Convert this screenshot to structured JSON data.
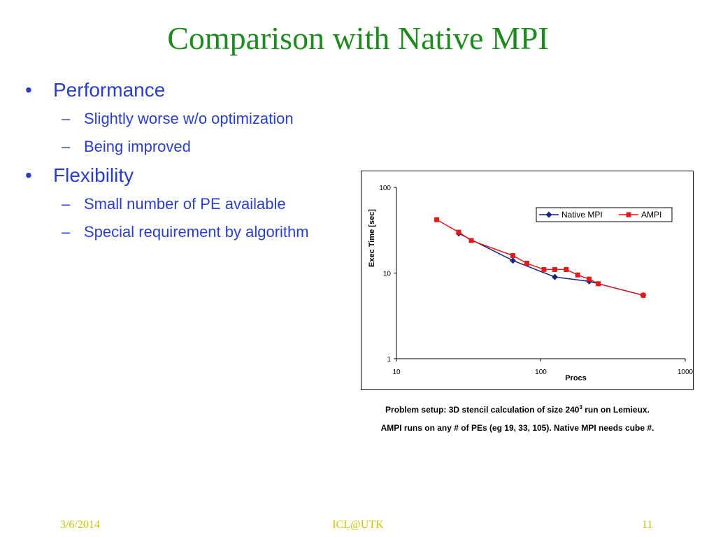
{
  "slide": {
    "title": "Comparison with Native MPI",
    "bullets": [
      {
        "text": "Performance",
        "sub": [
          "Slightly worse w/o optimization",
          "Being improved"
        ]
      },
      {
        "text": "Flexibility",
        "sub": [
          "Small number of PE available",
          "Special requirement by algorithm"
        ]
      }
    ],
    "bullet_glyph": "•",
    "sub_glyph": "–",
    "caption": {
      "line1_pre": "Problem setup: 3D stencil calculation of size 240",
      "line1_sup": "3",
      "line1_post": " run on Lemieux.",
      "line2": "AMPI runs on any # of PEs (eg 19, 33, 105). Native MPI needs cube #."
    },
    "footer": {
      "date": "3/6/2014",
      "center": "ICL@UTK",
      "page": "11"
    }
  },
  "colors": {
    "title": "#1f8a1f",
    "text": "#2a3fc9",
    "footer": "#c8c800",
    "native_mpi": "#1a237e",
    "ampi": "#e31a1c"
  },
  "chart_data": {
    "type": "line",
    "x_scale": "log",
    "y_scale": "log",
    "xlabel": "Procs",
    "ylabel": "Exec Time [sec]",
    "xlim": [
      10,
      1000
    ],
    "ylim": [
      1,
      100
    ],
    "x_ticks": [
      "10",
      "100",
      "1000"
    ],
    "y_ticks": [
      "1",
      "10",
      "100"
    ],
    "legend_position": "top-right",
    "grid": false,
    "series": [
      {
        "name": "Native MPI",
        "marker": "diamond",
        "color": "#1a237e",
        "x": [
          27,
          64,
          125,
          216,
          512
        ],
        "y": [
          29,
          14,
          9,
          8,
          5.5
        ]
      },
      {
        "name": "AMPI",
        "marker": "square",
        "color": "#e31a1c",
        "x": [
          19,
          27,
          33,
          64,
          80,
          105,
          125,
          150,
          180,
          216,
          250,
          512
        ],
        "y": [
          42,
          30,
          24,
          16,
          13,
          11,
          11,
          11,
          9.5,
          8.5,
          7.5,
          5.5
        ]
      }
    ]
  }
}
